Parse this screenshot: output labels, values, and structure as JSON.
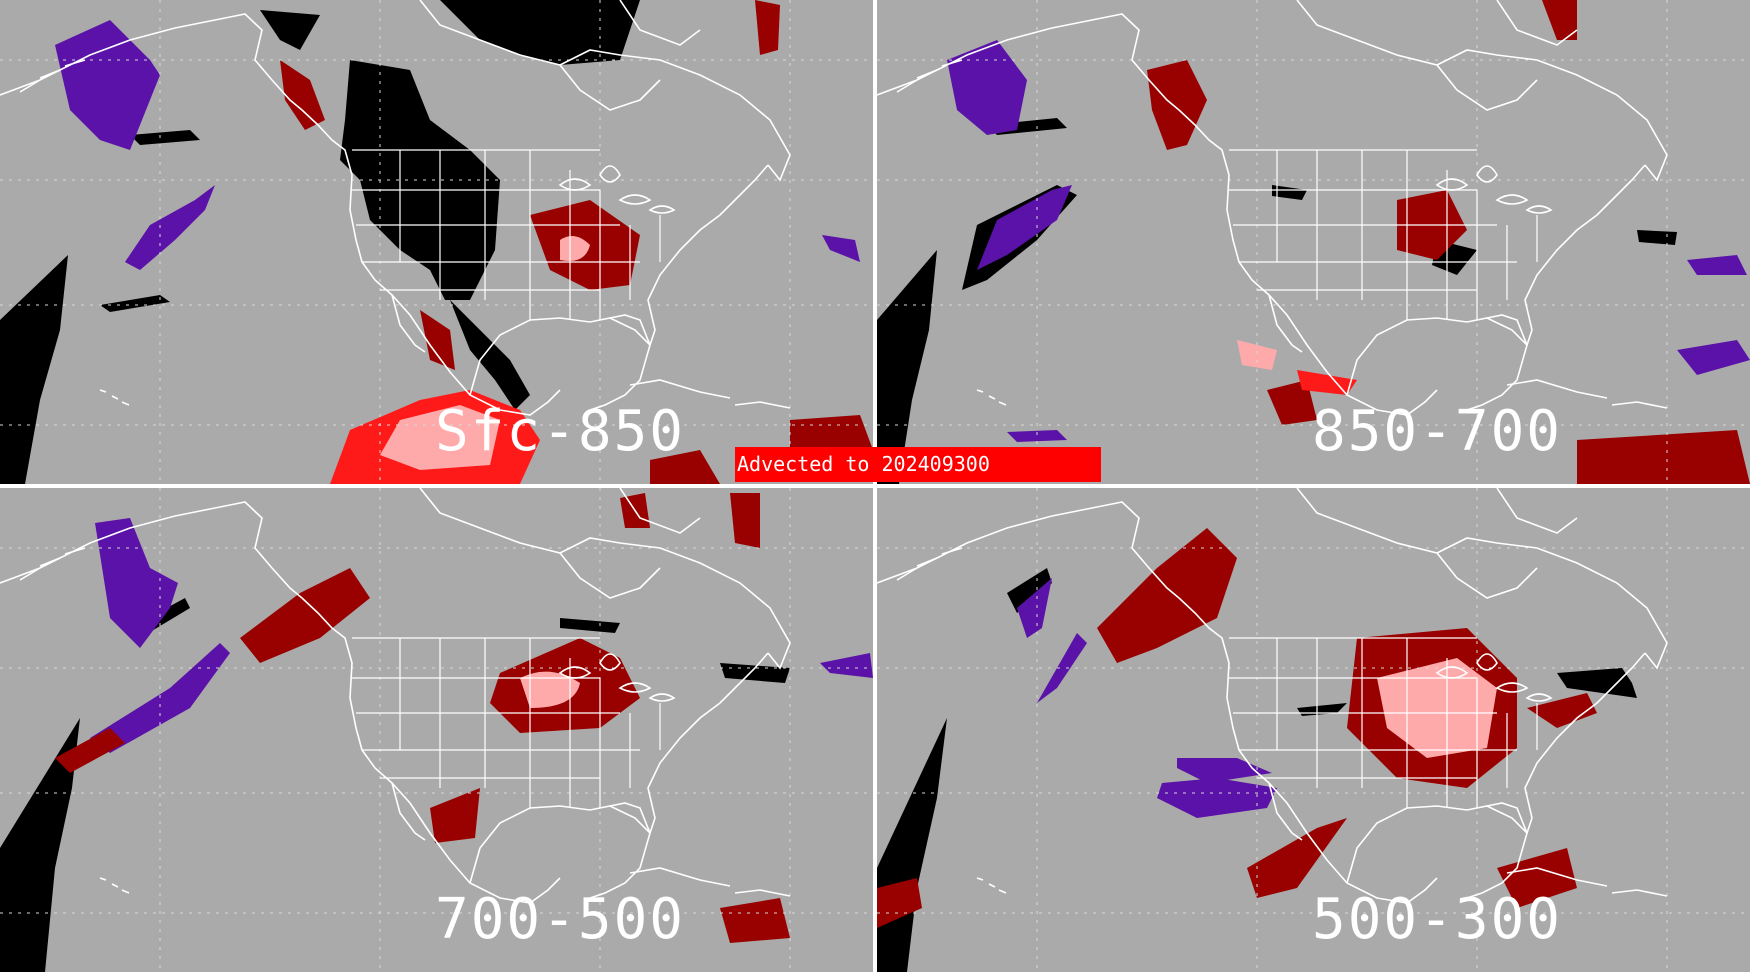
{
  "banner": {
    "text": "Advected to  202409300"
  },
  "panels": [
    {
      "id": "tl",
      "label": "Sfc-850"
    },
    {
      "id": "tr",
      "label": "850-700"
    },
    {
      "id": "bl",
      "label": "700-500"
    },
    {
      "id": "br",
      "label": "500-300"
    }
  ],
  "colors": {
    "background": "#aaaaaa",
    "coastline": "#ffffff",
    "gridline": "#dddddd",
    "dark_red": "#990000",
    "bright_red": "#ff1a1a",
    "pink": "#ffaaaa",
    "purple": "#5a12a8",
    "black": "#000000",
    "banner": "#ff0000"
  }
}
